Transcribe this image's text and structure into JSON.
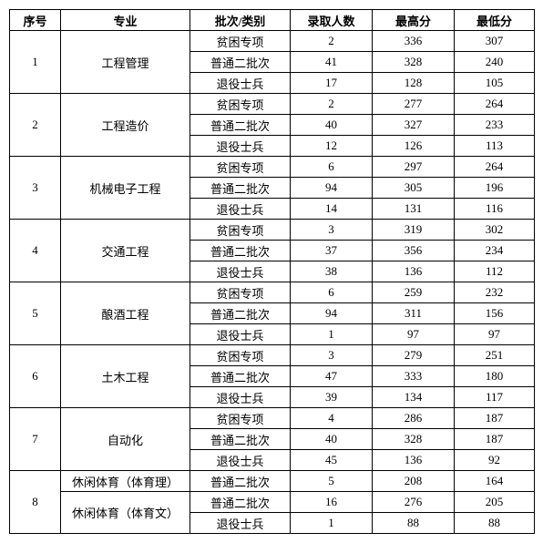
{
  "headers": [
    "序号",
    "专业",
    "批次/类别",
    "录取人数",
    "最高分",
    "最低分"
  ],
  "groups": [
    {
      "seq": "1",
      "majors": [
        {
          "name": "工程管理",
          "rows": [
            {
              "batch": "贫困专项",
              "count": "2",
              "max": "336",
              "min": "307"
            },
            {
              "batch": "普通二批次",
              "count": "41",
              "max": "328",
              "min": "240"
            },
            {
              "batch": "退役士兵",
              "count": "17",
              "max": "128",
              "min": "105"
            }
          ]
        }
      ]
    },
    {
      "seq": "2",
      "majors": [
        {
          "name": "工程造价",
          "rows": [
            {
              "batch": "贫困专项",
              "count": "2",
              "max": "277",
              "min": "264"
            },
            {
              "batch": "普通二批次",
              "count": "40",
              "max": "327",
              "min": "233"
            },
            {
              "batch": "退役士兵",
              "count": "12",
              "max": "126",
              "min": "113"
            }
          ]
        }
      ]
    },
    {
      "seq": "3",
      "majors": [
        {
          "name": "机械电子工程",
          "rows": [
            {
              "batch": "贫困专项",
              "count": "6",
              "max": "297",
              "min": "264"
            },
            {
              "batch": "普通二批次",
              "count": "94",
              "max": "305",
              "min": "196"
            },
            {
              "batch": "退役士兵",
              "count": "14",
              "max": "131",
              "min": "116"
            }
          ]
        }
      ]
    },
    {
      "seq": "4",
      "majors": [
        {
          "name": "交通工程",
          "rows": [
            {
              "batch": "贫困专项",
              "count": "3",
              "max": "319",
              "min": "302"
            },
            {
              "batch": "普通二批次",
              "count": "37",
              "max": "356",
              "min": "234"
            },
            {
              "batch": "退役士兵",
              "count": "38",
              "max": "136",
              "min": "112"
            }
          ]
        }
      ]
    },
    {
      "seq": "5",
      "majors": [
        {
          "name": "酿酒工程",
          "rows": [
            {
              "batch": "贫困专项",
              "count": "6",
              "max": "259",
              "min": "232"
            },
            {
              "batch": "普通二批次",
              "count": "94",
              "max": "311",
              "min": "156"
            },
            {
              "batch": "退役士兵",
              "count": "1",
              "max": "97",
              "min": "97"
            }
          ]
        }
      ]
    },
    {
      "seq": "6",
      "majors": [
        {
          "name": "土木工程",
          "rows": [
            {
              "batch": "贫困专项",
              "count": "3",
              "max": "279",
              "min": "251"
            },
            {
              "batch": "普通二批次",
              "count": "47",
              "max": "333",
              "min": "180"
            },
            {
              "batch": "退役士兵",
              "count": "39",
              "max": "134",
              "min": "117"
            }
          ]
        }
      ]
    },
    {
      "seq": "7",
      "majors": [
        {
          "name": "自动化",
          "rows": [
            {
              "batch": "贫困专项",
              "count": "4",
              "max": "286",
              "min": "187"
            },
            {
              "batch": "普通二批次",
              "count": "40",
              "max": "328",
              "min": "187"
            },
            {
              "batch": "退役士兵",
              "count": "45",
              "max": "136",
              "min": "92"
            }
          ]
        }
      ]
    },
    {
      "seq": "8",
      "majors": [
        {
          "name": "休闲体育（体育理）",
          "rows": [
            {
              "batch": "普通二批次",
              "count": "5",
              "max": "208",
              "min": "164"
            }
          ]
        },
        {
          "name": "休闲体育（体育文）",
          "rows": [
            {
              "batch": "普通二批次",
              "count": "16",
              "max": "276",
              "min": "205"
            },
            {
              "batch": "退役士兵",
              "count": "1",
              "max": "88",
              "min": "88"
            }
          ]
        }
      ]
    }
  ]
}
